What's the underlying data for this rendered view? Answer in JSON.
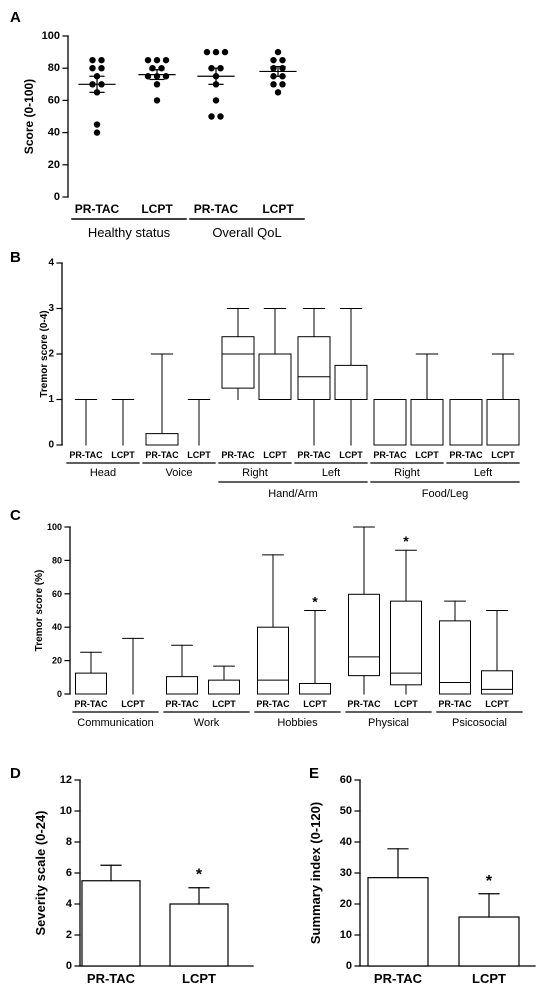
{
  "chart_data": [
    {
      "panel": "A",
      "type": "scatter",
      "ylabel": "Score (0-100)",
      "ylim": [
        0,
        100
      ],
      "yticks": [
        0,
        20,
        40,
        60,
        80,
        100
      ],
      "groups": [
        {
          "label": "Healthy status",
          "conditions": [
            {
              "name": "PR-TAC",
              "points": [
                85,
                85,
                80,
                80,
                75,
                70,
                70,
                65,
                45,
                40
              ],
              "mean": 70,
              "sem_low": 65,
              "sem_high": 75
            },
            {
              "name": "LCPT",
              "points": [
                85,
                85,
                85,
                80,
                80,
                75,
                75,
                75,
                70,
                60
              ],
              "mean": 76,
              "sem_low": 73,
              "sem_high": 79
            }
          ]
        },
        {
          "label": "Overall QoL",
          "conditions": [
            {
              "name": "PR-TAC",
              "points": [
                90,
                90,
                90,
                80,
                80,
                75,
                70,
                60,
                50,
                50
              ],
              "mean": 75,
              "sem_low": 70,
              "sem_high": 80
            },
            {
              "name": "LCPT",
              "points": [
                90,
                85,
                85,
                80,
                80,
                75,
                75,
                70,
                70,
                65
              ],
              "mean": 78,
              "sem_low": 75,
              "sem_high": 81
            }
          ]
        }
      ]
    },
    {
      "panel": "B",
      "type": "box",
      "ylabel": "Tremor score (0-4)",
      "ylim": [
        0,
        4
      ],
      "yticks": [
        0,
        1,
        2,
        3,
        4
      ],
      "conditions": [
        "PR-TAC",
        "LCPT"
      ],
      "groups": [
        "Head",
        "Voice",
        "Right",
        "Left",
        "Right",
        "Left"
      ],
      "super_groups": [
        {
          "label": "Hand/Arm",
          "from": 2,
          "to": 3
        },
        {
          "label": "Food/Leg",
          "from": 4,
          "to": 5
        }
      ],
      "boxes": [
        {
          "min": 0,
          "q1": 0,
          "median": 0,
          "q3": 0,
          "max": 1
        },
        {
          "min": 0,
          "q1": 0,
          "median": 0,
          "q3": 0,
          "max": 1
        },
        {
          "min": 0,
          "q1": 0,
          "median": 0,
          "q3": 0.25,
          "max": 2
        },
        {
          "min": 0,
          "q1": 0,
          "median": 0,
          "q3": 0,
          "max": 1
        },
        {
          "min": 1,
          "q1": 1.25,
          "median": 2,
          "q3": 2.38,
          "max": 3
        },
        {
          "min": 1,
          "q1": 1,
          "median": 2,
          "q3": 2,
          "max": 3
        },
        {
          "min": 0,
          "q1": 1,
          "median": 1.5,
          "q3": 2.38,
          "max": 3
        },
        {
          "min": 0,
          "q1": 1,
          "median": 1,
          "q3": 1.75,
          "max": 3
        },
        {
          "min": 0,
          "q1": 0,
          "median": 1,
          "q3": 1,
          "max": 1
        },
        {
          "min": 0,
          "q1": 0,
          "median": 0,
          "q3": 1,
          "max": 2
        },
        {
          "min": 0,
          "q1": 0,
          "median": 1,
          "q3": 1,
          "max": 1
        },
        {
          "min": 0,
          "q1": 0,
          "median": 0,
          "q3": 1,
          "max": 2
        }
      ]
    },
    {
      "panel": "C",
      "type": "box",
      "ylabel": "Tremor score (%)",
      "ylim": [
        0,
        100
      ],
      "yticks": [
        0,
        20,
        40,
        60,
        80,
        100
      ],
      "conditions": [
        "PR-TAC",
        "LCPT"
      ],
      "groups": [
        "Communication",
        "Work",
        "Hobbies",
        "Physical",
        "Psicosocial"
      ],
      "boxes": [
        {
          "min": 0,
          "q1": 0,
          "median": 0,
          "q3": 12.5,
          "max": 25,
          "sig": ""
        },
        {
          "min": 0,
          "q1": 0,
          "median": 0,
          "q3": 0,
          "max": 33.3,
          "sig": ""
        },
        {
          "min": 0,
          "q1": 0,
          "median": 0,
          "q3": 10.4,
          "max": 29.2,
          "sig": ""
        },
        {
          "min": 0,
          "q1": 0,
          "median": 0,
          "q3": 8.3,
          "max": 16.7,
          "sig": ""
        },
        {
          "min": 0,
          "q1": 0,
          "median": 8.3,
          "q3": 40,
          "max": 83.3,
          "sig": ""
        },
        {
          "min": 0,
          "q1": 0,
          "median": 0,
          "q3": 6.3,
          "max": 50,
          "sig": "*"
        },
        {
          "min": 0,
          "q1": 11,
          "median": 22.2,
          "q3": 59.7,
          "max": 100,
          "sig": ""
        },
        {
          "min": 0,
          "q1": 5.5,
          "median": 12.5,
          "q3": 55.6,
          "max": 86.1,
          "sig": "*"
        },
        {
          "min": 0,
          "q1": 0,
          "median": 6.9,
          "q3": 43.8,
          "max": 55.6,
          "sig": ""
        },
        {
          "min": 0,
          "q1": 0,
          "median": 2.8,
          "q3": 13.9,
          "max": 50,
          "sig": ""
        }
      ]
    },
    {
      "panel": "D",
      "type": "bar",
      "ylabel": "Severity scale (0-24)",
      "ylim": [
        0,
        12
      ],
      "yticks": [
        0,
        2,
        4,
        6,
        8,
        10,
        12
      ],
      "categories": [
        "PR-TAC",
        "LCPT"
      ],
      "values": [
        5.5,
        4.0
      ],
      "errors": [
        1.0,
        1.05
      ],
      "sig": [
        "",
        "*"
      ]
    },
    {
      "panel": "E",
      "type": "bar",
      "ylabel": "Summary index (0-120)",
      "ylim": [
        0,
        60
      ],
      "yticks": [
        0,
        10,
        20,
        30,
        40,
        50,
        60
      ],
      "categories": [
        "PR-TAC",
        "LCPT"
      ],
      "values": [
        28.5,
        15.8
      ],
      "errors": [
        9.3,
        7.5
      ],
      "sig": [
        "",
        "*"
      ]
    }
  ]
}
